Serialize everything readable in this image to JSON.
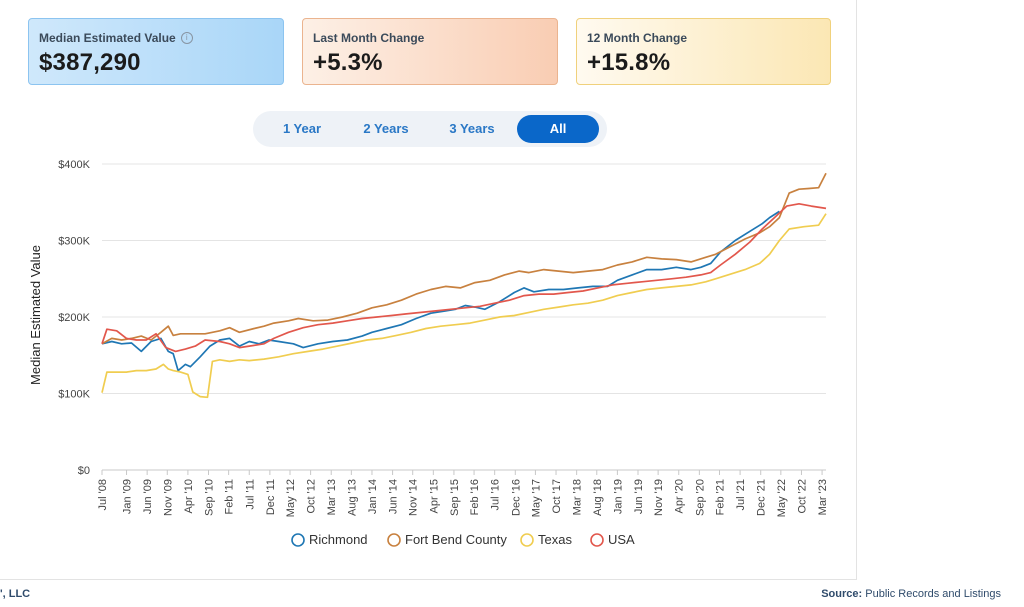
{
  "cards": [
    {
      "label": "Median Estimated Value",
      "value": "$387,290"
    },
    {
      "label": "Last Month Change",
      "value": "+5.3%"
    },
    {
      "label": "12 Month Change",
      "value": "+15.8%"
    }
  ],
  "tabs": [
    "1 Year",
    "2 Years",
    "3 Years",
    "All"
  ],
  "active_tab": "All",
  "footer": {
    "left": "', LLC",
    "source_label": "Source:",
    "source_text": "Public Records and Listings"
  },
  "chart_data": {
    "type": "line",
    "title": "",
    "xlabel": "",
    "ylabel": "Median Estimated Value",
    "ylim": [
      0,
      400000
    ],
    "yticks": [
      0,
      100000,
      200000,
      300000,
      400000
    ],
    "ytick_labels": [
      "$0",
      "$100K",
      "$200K",
      "$300K",
      "$400K"
    ],
    "xlim": [
      2008.5,
      2023.25
    ],
    "xticks": [
      2008.5,
      2009.0,
      2009.42,
      2009.83,
      2010.25,
      2010.67,
      2011.08,
      2011.5,
      2011.92,
      2012.33,
      2012.75,
      2013.17,
      2013.58,
      2014.0,
      2014.42,
      2014.83,
      2015.25,
      2015.67,
      2016.08,
      2016.5,
      2016.92,
      2017.33,
      2017.75,
      2018.17,
      2018.58,
      2019.0,
      2019.42,
      2019.83,
      2020.25,
      2020.67,
      2021.08,
      2021.5,
      2021.92,
      2022.33,
      2022.75,
      2023.17
    ],
    "xtick_labels": [
      "Jul '08",
      "Jan '09",
      "Jun '09",
      "Nov '09",
      "Apr '10",
      "Sep '10",
      "Feb '11",
      "Jul '11",
      "Dec '11",
      "May '12",
      "Oct '12",
      "Mar '13",
      "Aug '13",
      "Jan '14",
      "Jun '14",
      "Nov '14",
      "Apr '15",
      "Sep '15",
      "Feb '16",
      "Jul '16",
      "Dec '16",
      "May '17",
      "Oct '17",
      "Mar '18",
      "Aug '18",
      "Jan '19",
      "Jun '19",
      "Nov '19",
      "Apr '20",
      "Sep '20",
      "Feb '21",
      "Jul '21",
      "Dec '21",
      "May '22",
      "Oct '22",
      "Mar '23"
    ],
    "legend_position": "bottom-center",
    "series": [
      {
        "name": "Richmond",
        "color": "#1f77b4",
        "points": [
          [
            2008.5,
            165000
          ],
          [
            2008.7,
            168000
          ],
          [
            2008.9,
            165000
          ],
          [
            2009.1,
            166000
          ],
          [
            2009.3,
            155000
          ],
          [
            2009.5,
            168000
          ],
          [
            2009.7,
            172000
          ],
          [
            2009.85,
            155000
          ],
          [
            2009.95,
            152000
          ],
          [
            2010.05,
            130000
          ],
          [
            2010.2,
            138000
          ],
          [
            2010.3,
            135000
          ],
          [
            2010.5,
            148000
          ],
          [
            2010.7,
            162000
          ],
          [
            2010.9,
            170000
          ],
          [
            2011.1,
            172000
          ],
          [
            2011.3,
            162000
          ],
          [
            2011.5,
            168000
          ],
          [
            2011.7,
            165000
          ],
          [
            2011.9,
            170000
          ],
          [
            2012.1,
            168000
          ],
          [
            2012.4,
            165000
          ],
          [
            2012.6,
            160000
          ],
          [
            2012.9,
            165000
          ],
          [
            2013.2,
            168000
          ],
          [
            2013.5,
            170000
          ],
          [
            2013.8,
            175000
          ],
          [
            2014.0,
            180000
          ],
          [
            2014.3,
            185000
          ],
          [
            2014.6,
            190000
          ],
          [
            2014.9,
            198000
          ],
          [
            2015.2,
            205000
          ],
          [
            2015.5,
            208000
          ],
          [
            2015.7,
            210000
          ],
          [
            2015.9,
            215000
          ],
          [
            2016.1,
            213000
          ],
          [
            2016.3,
            210000
          ],
          [
            2016.6,
            220000
          ],
          [
            2016.9,
            232000
          ],
          [
            2017.1,
            238000
          ],
          [
            2017.3,
            233000
          ],
          [
            2017.6,
            236000
          ],
          [
            2017.9,
            236000
          ],
          [
            2018.2,
            238000
          ],
          [
            2018.5,
            240000
          ],
          [
            2018.8,
            240000
          ],
          [
            2019.0,
            248000
          ],
          [
            2019.3,
            255000
          ],
          [
            2019.6,
            262000
          ],
          [
            2019.9,
            262000
          ],
          [
            2020.2,
            265000
          ],
          [
            2020.5,
            262000
          ],
          [
            2020.7,
            265000
          ],
          [
            2020.9,
            270000
          ],
          [
            2021.1,
            285000
          ],
          [
            2021.4,
            300000
          ],
          [
            2021.7,
            312000
          ],
          [
            2021.95,
            322000
          ],
          [
            2022.1,
            330000
          ],
          [
            2022.3,
            338000
          ]
        ]
      },
      {
        "name": "Fort Bend County",
        "color": "#c8813f",
        "points": [
          [
            2008.5,
            165000
          ],
          [
            2008.7,
            172000
          ],
          [
            2008.9,
            170000
          ],
          [
            2009.1,
            172000
          ],
          [
            2009.3,
            175000
          ],
          [
            2009.5,
            170000
          ],
          [
            2009.7,
            180000
          ],
          [
            2009.85,
            188000
          ],
          [
            2009.95,
            176000
          ],
          [
            2010.1,
            178000
          ],
          [
            2010.3,
            178000
          ],
          [
            2010.6,
            178000
          ],
          [
            2010.9,
            182000
          ],
          [
            2011.1,
            186000
          ],
          [
            2011.3,
            180000
          ],
          [
            2011.6,
            185000
          ],
          [
            2011.8,
            188000
          ],
          [
            2012.0,
            192000
          ],
          [
            2012.3,
            195000
          ],
          [
            2012.5,
            198000
          ],
          [
            2012.8,
            195000
          ],
          [
            2013.1,
            196000
          ],
          [
            2013.4,
            200000
          ],
          [
            2013.7,
            205000
          ],
          [
            2014.0,
            212000
          ],
          [
            2014.3,
            216000
          ],
          [
            2014.6,
            222000
          ],
          [
            2014.9,
            230000
          ],
          [
            2015.2,
            236000
          ],
          [
            2015.5,
            240000
          ],
          [
            2015.8,
            238000
          ],
          [
            2016.1,
            245000
          ],
          [
            2016.4,
            248000
          ],
          [
            2016.7,
            255000
          ],
          [
            2017.0,
            260000
          ],
          [
            2017.2,
            258000
          ],
          [
            2017.5,
            262000
          ],
          [
            2017.8,
            260000
          ],
          [
            2018.1,
            258000
          ],
          [
            2018.4,
            260000
          ],
          [
            2018.7,
            262000
          ],
          [
            2019.0,
            268000
          ],
          [
            2019.3,
            272000
          ],
          [
            2019.6,
            278000
          ],
          [
            2019.9,
            276000
          ],
          [
            2020.2,
            275000
          ],
          [
            2020.5,
            272000
          ],
          [
            2020.8,
            278000
          ],
          [
            2021.0,
            282000
          ],
          [
            2021.3,
            292000
          ],
          [
            2021.6,
            302000
          ],
          [
            2021.9,
            310000
          ],
          [
            2022.1,
            318000
          ],
          [
            2022.3,
            330000
          ],
          [
            2022.5,
            362000
          ],
          [
            2022.7,
            367000
          ],
          [
            2022.9,
            368000
          ],
          [
            2023.1,
            369000
          ],
          [
            2023.25,
            388000
          ]
        ]
      },
      {
        "name": "Texas",
        "color": "#f0cd50",
        "points": [
          [
            2008.5,
            101000
          ],
          [
            2008.6,
            128000
          ],
          [
            2008.8,
            128000
          ],
          [
            2009.0,
            128000
          ],
          [
            2009.2,
            130000
          ],
          [
            2009.4,
            130000
          ],
          [
            2009.6,
            132000
          ],
          [
            2009.75,
            138000
          ],
          [
            2009.85,
            132000
          ],
          [
            2009.95,
            130000
          ],
          [
            2010.1,
            128000
          ],
          [
            2010.25,
            125000
          ],
          [
            2010.35,
            102000
          ],
          [
            2010.5,
            96000
          ],
          [
            2010.65,
            95000
          ],
          [
            2010.75,
            142000
          ],
          [
            2010.9,
            144000
          ],
          [
            2011.1,
            142000
          ],
          [
            2011.3,
            144000
          ],
          [
            2011.5,
            143000
          ],
          [
            2011.8,
            145000
          ],
          [
            2012.1,
            148000
          ],
          [
            2012.4,
            152000
          ],
          [
            2012.7,
            155000
          ],
          [
            2013.0,
            158000
          ],
          [
            2013.3,
            162000
          ],
          [
            2013.6,
            166000
          ],
          [
            2013.9,
            170000
          ],
          [
            2014.2,
            172000
          ],
          [
            2014.5,
            176000
          ],
          [
            2014.8,
            180000
          ],
          [
            2015.1,
            185000
          ],
          [
            2015.4,
            188000
          ],
          [
            2015.7,
            190000
          ],
          [
            2016.0,
            192000
          ],
          [
            2016.3,
            196000
          ],
          [
            2016.6,
            200000
          ],
          [
            2016.9,
            202000
          ],
          [
            2017.2,
            206000
          ],
          [
            2017.5,
            210000
          ],
          [
            2017.8,
            213000
          ],
          [
            2018.1,
            216000
          ],
          [
            2018.4,
            218000
          ],
          [
            2018.7,
            222000
          ],
          [
            2019.0,
            228000
          ],
          [
            2019.3,
            232000
          ],
          [
            2019.6,
            236000
          ],
          [
            2019.9,
            238000
          ],
          [
            2020.2,
            240000
          ],
          [
            2020.5,
            242000
          ],
          [
            2020.8,
            246000
          ],
          [
            2021.0,
            250000
          ],
          [
            2021.3,
            256000
          ],
          [
            2021.6,
            262000
          ],
          [
            2021.9,
            270000
          ],
          [
            2022.1,
            282000
          ],
          [
            2022.3,
            300000
          ],
          [
            2022.5,
            315000
          ],
          [
            2022.8,
            318000
          ],
          [
            2023.1,
            320000
          ],
          [
            2023.25,
            335000
          ]
        ]
      },
      {
        "name": "USA",
        "color": "#e2574c",
        "points": [
          [
            2008.5,
            165000
          ],
          [
            2008.6,
            184000
          ],
          [
            2008.8,
            182000
          ],
          [
            2009.0,
            172000
          ],
          [
            2009.2,
            170000
          ],
          [
            2009.4,
            170000
          ],
          [
            2009.6,
            178000
          ],
          [
            2009.8,
            160000
          ],
          [
            2010.0,
            155000
          ],
          [
            2010.2,
            158000
          ],
          [
            2010.4,
            162000
          ],
          [
            2010.6,
            170000
          ],
          [
            2010.9,
            168000
          ],
          [
            2011.1,
            165000
          ],
          [
            2011.3,
            160000
          ],
          [
            2011.5,
            162000
          ],
          [
            2011.8,
            165000
          ],
          [
            2012.0,
            172000
          ],
          [
            2012.3,
            180000
          ],
          [
            2012.6,
            186000
          ],
          [
            2012.9,
            190000
          ],
          [
            2013.2,
            192000
          ],
          [
            2013.5,
            195000
          ],
          [
            2013.8,
            198000
          ],
          [
            2014.1,
            200000
          ],
          [
            2014.4,
            202000
          ],
          [
            2014.7,
            204000
          ],
          [
            2015.0,
            206000
          ],
          [
            2015.3,
            208000
          ],
          [
            2015.6,
            210000
          ],
          [
            2015.9,
            212000
          ],
          [
            2016.2,
            214000
          ],
          [
            2016.5,
            218000
          ],
          [
            2016.8,
            222000
          ],
          [
            2017.1,
            228000
          ],
          [
            2017.4,
            230000
          ],
          [
            2017.7,
            230000
          ],
          [
            2018.0,
            232000
          ],
          [
            2018.3,
            234000
          ],
          [
            2018.6,
            238000
          ],
          [
            2018.9,
            242000
          ],
          [
            2019.2,
            244000
          ],
          [
            2019.5,
            246000
          ],
          [
            2019.8,
            248000
          ],
          [
            2020.1,
            250000
          ],
          [
            2020.4,
            252000
          ],
          [
            2020.7,
            255000
          ],
          [
            2020.9,
            258000
          ],
          [
            2021.1,
            268000
          ],
          [
            2021.4,
            282000
          ],
          [
            2021.7,
            298000
          ],
          [
            2021.95,
            315000
          ],
          [
            2022.2,
            330000
          ],
          [
            2022.45,
            345000
          ],
          [
            2022.7,
            348000
          ],
          [
            2022.95,
            345000
          ],
          [
            2023.25,
            342000
          ]
        ]
      }
    ]
  }
}
